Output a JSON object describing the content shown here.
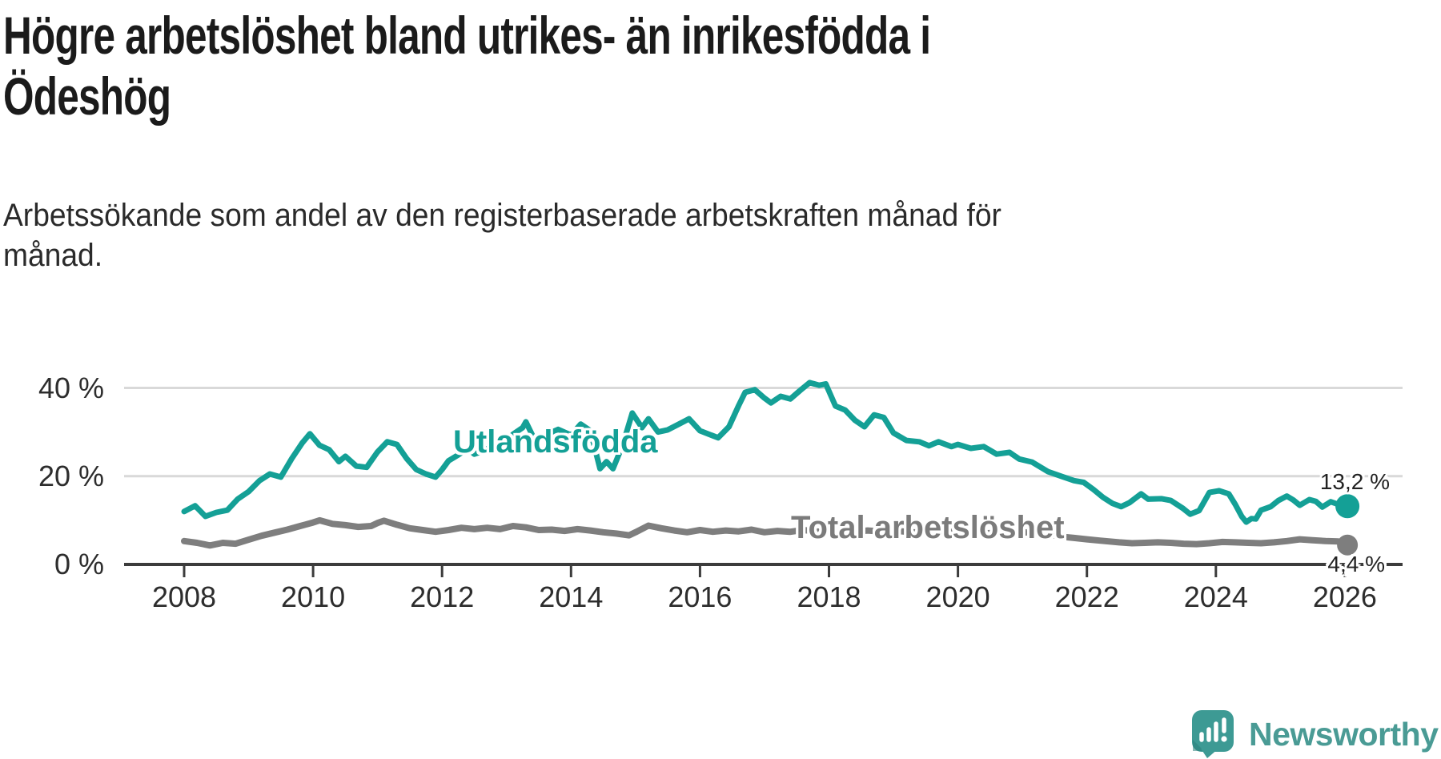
{
  "header": {
    "title": "Högre arbetslöshet bland utrikes- än inrikesfödda i\nÖdeshög",
    "subtitle": "Arbetssökande som andel av den registerbaserade arbetskraften månad för\nmånad."
  },
  "chart_data": {
    "type": "line",
    "title": "Högre arbetslöshet bland utrikes- än inrikesfödda i Ödeshög",
    "subtitle": "Arbetssökande som andel av den registerbaserade arbetskraften månad för månad.",
    "x_unit": "decimal_year",
    "xlim": [
      2008,
      2026.1
    ],
    "ylim": [
      0,
      44
    ],
    "grid": true,
    "grid_color": "#d9d9d9",
    "axis_color": "#3c3c3c",
    "tick_label_color": "#2d2d2d",
    "x_ticks": [
      2008,
      2010,
      2012,
      2014,
      2016,
      2018,
      2020,
      2022,
      2024,
      2026
    ],
    "y_ticks": [
      {
        "value": 0,
        "label": "0 %"
      },
      {
        "value": 20,
        "label": "20 %"
      },
      {
        "value": 40,
        "label": "40 %"
      }
    ],
    "series": [
      {
        "name": "utlandsfodda",
        "label": "Utlandsfödda",
        "color": "#14a096",
        "end_label": "13,2 %",
        "end_value": 13.2,
        "points": [
          [
            2008.0,
            12.0
          ],
          [
            2008.17,
            13.3
          ],
          [
            2008.33,
            10.9
          ],
          [
            2008.5,
            11.8
          ],
          [
            2008.67,
            12.3
          ],
          [
            2008.83,
            14.8
          ],
          [
            2009.0,
            16.5
          ],
          [
            2009.17,
            19.0
          ],
          [
            2009.33,
            20.5
          ],
          [
            2009.5,
            19.8
          ],
          [
            2009.67,
            24.0
          ],
          [
            2009.83,
            27.5
          ],
          [
            2009.95,
            29.6
          ],
          [
            2010.1,
            27.0
          ],
          [
            2010.25,
            26.0
          ],
          [
            2010.4,
            23.3
          ],
          [
            2010.5,
            24.5
          ],
          [
            2010.67,
            22.3
          ],
          [
            2010.83,
            22.0
          ],
          [
            2011.0,
            25.5
          ],
          [
            2011.15,
            27.8
          ],
          [
            2011.3,
            27.2
          ],
          [
            2011.45,
            24.0
          ],
          [
            2011.6,
            21.5
          ],
          [
            2011.75,
            20.5
          ],
          [
            2011.9,
            19.8
          ],
          [
            2012.0,
            21.5
          ],
          [
            2012.1,
            23.5
          ],
          [
            2012.25,
            24.8
          ],
          [
            2012.4,
            26.3
          ],
          [
            2012.5,
            25.0
          ],
          [
            2012.6,
            25.5
          ],
          [
            2012.75,
            26.5
          ],
          [
            2012.9,
            27.0
          ],
          [
            2013.0,
            28.0
          ],
          [
            2013.1,
            29.5
          ],
          [
            2013.25,
            31.0
          ],
          [
            2013.3,
            32.3
          ],
          [
            2013.45,
            27.8
          ],
          [
            2013.6,
            29.3
          ],
          [
            2013.8,
            30.6
          ],
          [
            2014.0,
            29.3
          ],
          [
            2014.15,
            31.8
          ],
          [
            2014.3,
            30.3
          ],
          [
            2014.45,
            21.7
          ],
          [
            2014.55,
            23.3
          ],
          [
            2014.65,
            21.7
          ],
          [
            2014.8,
            27.0
          ],
          [
            2014.95,
            34.3
          ],
          [
            2015.1,
            31.0
          ],
          [
            2015.2,
            33.0
          ],
          [
            2015.35,
            30.0
          ],
          [
            2015.5,
            30.5
          ],
          [
            2015.66,
            31.7
          ],
          [
            2015.83,
            33.0
          ],
          [
            2016.0,
            30.3
          ],
          [
            2016.28,
            28.7
          ],
          [
            2016.45,
            31.2
          ],
          [
            2016.6,
            36.0
          ],
          [
            2016.7,
            39.0
          ],
          [
            2016.85,
            39.6
          ],
          [
            2017.0,
            37.7
          ],
          [
            2017.1,
            36.6
          ],
          [
            2017.25,
            38.1
          ],
          [
            2017.4,
            37.5
          ],
          [
            2017.55,
            39.4
          ],
          [
            2017.7,
            41.2
          ],
          [
            2017.85,
            40.6
          ],
          [
            2017.95,
            40.9
          ],
          [
            2018.1,
            35.9
          ],
          [
            2018.25,
            35.0
          ],
          [
            2018.4,
            32.7
          ],
          [
            2018.55,
            31.2
          ],
          [
            2018.7,
            33.9
          ],
          [
            2018.85,
            33.3
          ],
          [
            2019.0,
            29.8
          ],
          [
            2019.2,
            28.1
          ],
          [
            2019.4,
            27.8
          ],
          [
            2019.55,
            26.9
          ],
          [
            2019.7,
            27.8
          ],
          [
            2019.9,
            26.7
          ],
          [
            2020.0,
            27.2
          ],
          [
            2020.2,
            26.3
          ],
          [
            2020.4,
            26.7
          ],
          [
            2020.6,
            25.0
          ],
          [
            2020.8,
            25.4
          ],
          [
            2020.95,
            23.9
          ],
          [
            2021.15,
            23.2
          ],
          [
            2021.4,
            21.0
          ],
          [
            2021.6,
            20.0
          ],
          [
            2021.8,
            19.0
          ],
          [
            2021.95,
            18.6
          ],
          [
            2022.1,
            17.0
          ],
          [
            2022.25,
            15.2
          ],
          [
            2022.4,
            13.8
          ],
          [
            2022.53,
            13.1
          ],
          [
            2022.66,
            14.0
          ],
          [
            2022.84,
            16.0
          ],
          [
            2022.95,
            14.8
          ],
          [
            2023.16,
            14.9
          ],
          [
            2023.3,
            14.5
          ],
          [
            2023.49,
            12.7
          ],
          [
            2023.6,
            11.4
          ],
          [
            2023.74,
            12.2
          ],
          [
            2023.9,
            16.3
          ],
          [
            2024.05,
            16.7
          ],
          [
            2024.2,
            16.0
          ],
          [
            2024.3,
            13.6
          ],
          [
            2024.4,
            10.9
          ],
          [
            2024.47,
            9.6
          ],
          [
            2024.55,
            10.4
          ],
          [
            2024.62,
            10.3
          ],
          [
            2024.7,
            12.3
          ],
          [
            2024.85,
            13.1
          ],
          [
            2024.97,
            14.5
          ],
          [
            2025.1,
            15.5
          ],
          [
            2025.2,
            14.6
          ],
          [
            2025.3,
            13.4
          ],
          [
            2025.45,
            14.7
          ],
          [
            2025.55,
            14.3
          ],
          [
            2025.65,
            13.0
          ],
          [
            2025.78,
            14.2
          ],
          [
            2025.9,
            13.6
          ],
          [
            2026.04,
            13.2
          ]
        ]
      },
      {
        "name": "total-arbetsloshet",
        "label": "Total arbetslöshet",
        "color": "#7e7e7e",
        "end_label": "4,4 %",
        "end_value": 4.4,
        "points": [
          [
            2008.0,
            5.3
          ],
          [
            2008.2,
            4.9
          ],
          [
            2008.4,
            4.3
          ],
          [
            2008.6,
            4.9
          ],
          [
            2008.8,
            4.7
          ],
          [
            2009.0,
            5.6
          ],
          [
            2009.2,
            6.5
          ],
          [
            2009.4,
            7.2
          ],
          [
            2009.6,
            7.9
          ],
          [
            2009.8,
            8.7
          ],
          [
            2010.0,
            9.5
          ],
          [
            2010.1,
            10.0
          ],
          [
            2010.3,
            9.2
          ],
          [
            2010.5,
            8.9
          ],
          [
            2010.7,
            8.5
          ],
          [
            2010.9,
            8.7
          ],
          [
            2011.0,
            9.4
          ],
          [
            2011.1,
            9.9
          ],
          [
            2011.3,
            9.0
          ],
          [
            2011.5,
            8.2
          ],
          [
            2011.7,
            7.8
          ],
          [
            2011.9,
            7.4
          ],
          [
            2012.1,
            7.8
          ],
          [
            2012.3,
            8.3
          ],
          [
            2012.5,
            8.0
          ],
          [
            2012.7,
            8.3
          ],
          [
            2012.9,
            8.0
          ],
          [
            2013.1,
            8.7
          ],
          [
            2013.3,
            8.4
          ],
          [
            2013.5,
            7.8
          ],
          [
            2013.7,
            7.9
          ],
          [
            2013.9,
            7.6
          ],
          [
            2014.1,
            8.0
          ],
          [
            2014.3,
            7.7
          ],
          [
            2014.5,
            7.3
          ],
          [
            2014.7,
            7.0
          ],
          [
            2014.9,
            6.6
          ],
          [
            2015.0,
            7.3
          ],
          [
            2015.2,
            8.8
          ],
          [
            2015.4,
            8.2
          ],
          [
            2015.6,
            7.7
          ],
          [
            2015.8,
            7.3
          ],
          [
            2016.0,
            7.8
          ],
          [
            2016.2,
            7.4
          ],
          [
            2016.4,
            7.7
          ],
          [
            2016.6,
            7.5
          ],
          [
            2016.8,
            7.9
          ],
          [
            2017.0,
            7.3
          ],
          [
            2017.2,
            7.6
          ],
          [
            2017.4,
            7.4
          ],
          [
            2017.6,
            7.8
          ],
          [
            2017.8,
            7.5
          ],
          [
            2018.0,
            7.2
          ],
          [
            2018.2,
            7.0
          ],
          [
            2018.4,
            7.4
          ],
          [
            2018.6,
            7.7
          ],
          [
            2018.8,
            7.5
          ],
          [
            2019.0,
            7.7
          ],
          [
            2019.2,
            7.4
          ],
          [
            2019.4,
            7.2
          ],
          [
            2019.6,
            7.5
          ],
          [
            2019.8,
            7.3
          ],
          [
            2020.0,
            7.5
          ],
          [
            2020.2,
            7.2
          ],
          [
            2020.4,
            7.0
          ],
          [
            2020.6,
            7.2
          ],
          [
            2020.8,
            6.9
          ],
          [
            2021.0,
            7.2
          ],
          [
            2021.2,
            7.4
          ],
          [
            2021.4,
            6.8
          ],
          [
            2021.6,
            6.3
          ],
          [
            2021.8,
            6.0
          ],
          [
            2022.0,
            5.7
          ],
          [
            2022.2,
            5.4
          ],
          [
            2022.5,
            5.0
          ],
          [
            2022.7,
            4.8
          ],
          [
            2022.9,
            4.9
          ],
          [
            2023.1,
            5.0
          ],
          [
            2023.3,
            4.9
          ],
          [
            2023.5,
            4.7
          ],
          [
            2023.7,
            4.6
          ],
          [
            2023.9,
            4.8
          ],
          [
            2024.1,
            5.1
          ],
          [
            2024.3,
            5.0
          ],
          [
            2024.5,
            4.9
          ],
          [
            2024.7,
            4.8
          ],
          [
            2024.9,
            5.0
          ],
          [
            2025.1,
            5.3
          ],
          [
            2025.3,
            5.7
          ],
          [
            2025.5,
            5.5
          ],
          [
            2025.7,
            5.3
          ],
          [
            2025.9,
            5.2
          ],
          [
            2026.04,
            4.4
          ]
        ]
      }
    ]
  },
  "footer": {
    "brand": "Newsworthy",
    "brand_color": "#4a9b95",
    "icon": "bar-chart-speech-bubble-icon"
  }
}
